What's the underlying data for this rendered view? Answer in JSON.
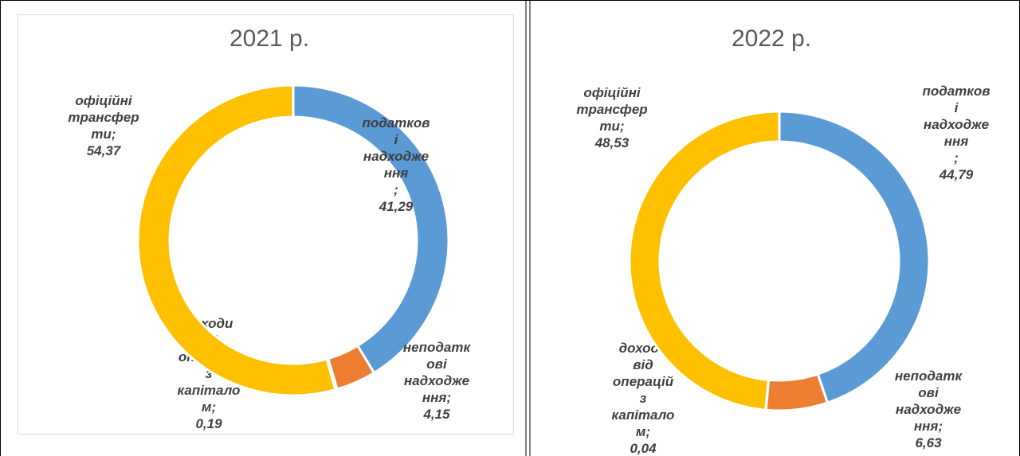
{
  "chart_data": [
    {
      "type": "donut",
      "title": "2021 р.",
      "values": [
        41.29,
        4.15,
        0.19,
        54.37
      ],
      "value_labels": [
        "податкові надходження ; 41,29",
        "неподаткові надходження; 4,15",
        "доходи від операцій з капіталом; 0,19",
        "офіційні трансферти; 54,37"
      ],
      "colors": [
        "#5b9bd5",
        "#ed7d31",
        "#a5a5a5",
        "#ffc000"
      ]
    },
    {
      "type": "donut",
      "title": "2022 р.",
      "values": [
        44.79,
        6.63,
        0.04,
        48.53
      ],
      "value_labels": [
        "податкові надходження ; 44,79",
        "неподаткові надходження; 6,63",
        "доходи від операцій з капіталом; 0,04",
        "офіційні трансферти; 48,53"
      ],
      "colors": [
        "#5b9bd5",
        "#ed7d31",
        "#a5a5a5",
        "#ffc000"
      ]
    }
  ]
}
